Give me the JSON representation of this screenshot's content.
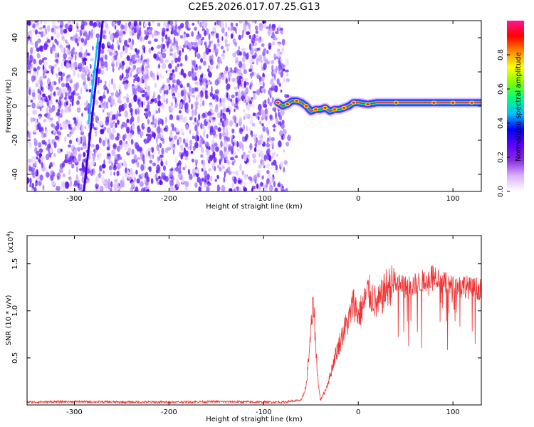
{
  "title": "C2E5.2026.017.07.25.G13",
  "chart_data": [
    {
      "type": "heatmap",
      "title": "C2E5.2026.017.07.25.G13",
      "xlabel": "Height of straight line (km)",
      "ylabel": "Frequency (Hz)",
      "xlim": [
        -350,
        130
      ],
      "ylim": [
        -50,
        50
      ],
      "xticks": [
        -300,
        -200,
        -100,
        0,
        100
      ],
      "xtick_labels": [
        "-300",
        "-200",
        "-100",
        "0",
        "100"
      ],
      "yticks": [
        -40,
        -20,
        0,
        20,
        40
      ],
      "ytick_labels": [
        "-40",
        "-20",
        "0",
        "20",
        "40"
      ],
      "noise_region_x": [
        -350,
        -78
      ],
      "signal_track": {
        "x": [
          -85,
          -80,
          -75,
          -70,
          -65,
          -60,
          -55,
          -50,
          -45,
          -40,
          -35,
          -30,
          -25,
          -20,
          -15,
          -10,
          -5,
          0,
          10,
          20,
          40,
          60,
          80,
          90,
          100,
          110,
          120,
          130
        ],
        "y": [
          2,
          0,
          1,
          3,
          3,
          2,
          0,
          -3,
          -2,
          -2,
          -1,
          -3,
          -2,
          -2,
          -1,
          0,
          2,
          2,
          1,
          2,
          2,
          2,
          2,
          2,
          2,
          2,
          2,
          2
        ]
      },
      "streaks": [
        {
          "x": [
            -290,
            -270
          ],
          "y": [
            -50,
            50
          ]
        },
        {
          "x": [
            -285,
            -275
          ],
          "y": [
            -10,
            40
          ]
        }
      ],
      "colorbar": {
        "label": "Normalized spectral amplitude",
        "ticks": [
          0.0,
          0.2,
          0.4,
          0.6,
          0.8
        ],
        "tick_labels": [
          "0.0",
          "0.2",
          "0.4",
          "0.6",
          "0.8"
        ],
        "range": [
          0,
          1
        ],
        "colors": [
          "#ffffff",
          "#d9b3ff",
          "#8a2be2",
          "#5a00ff",
          "#0000ff",
          "#00bfff",
          "#00ff7f",
          "#7fff00",
          "#ffff00",
          "#ff8c00",
          "#ff0000",
          "#ff1493"
        ]
      },
      "grid": false
    },
    {
      "type": "line",
      "xlabel": "Height of straight line (km)",
      "ylabel": "SNR (10 * v/v)",
      "y_multiplier_label": "(x10",
      "y_multiplier_exp": "4",
      "y_multiplier_close": ")",
      "xlim": [
        -350,
        130
      ],
      "ylim": [
        0,
        18000
      ],
      "xticks": [
        -300,
        -200,
        -100,
        0,
        100
      ],
      "xtick_labels": [
        "-300",
        "-200",
        "-100",
        "0",
        "100"
      ],
      "yticks": [
        5000,
        10000,
        15000
      ],
      "ytick_labels": [
        "0.5",
        "1.0",
        "1.5"
      ],
      "color": "#ee3333",
      "grid": false,
      "series": [
        {
          "x": [
            -350,
            -300,
            -250,
            -200,
            -150,
            -100,
            -80,
            -60,
            -55,
            -50,
            -47,
            -45,
            -42,
            -40,
            -35,
            -30,
            -25,
            -20,
            -15,
            -10,
            -5,
            0,
            5,
            10,
            15,
            20,
            30,
            40,
            50,
            60,
            70,
            80,
            85,
            90,
            100,
            110,
            120,
            130
          ],
          "y": [
            300,
            350,
            300,
            300,
            350,
            300,
            300,
            500,
            2000,
            8000,
            11000,
            6000,
            2000,
            500,
            1500,
            3000,
            5000,
            6500,
            8000,
            9000,
            11000,
            9500,
            10500,
            12000,
            11500,
            10500,
            12500,
            13000,
            12500,
            12800,
            13200,
            14000,
            13500,
            13000,
            12500,
            12800,
            12300,
            12500
          ]
        }
      ]
    }
  ]
}
